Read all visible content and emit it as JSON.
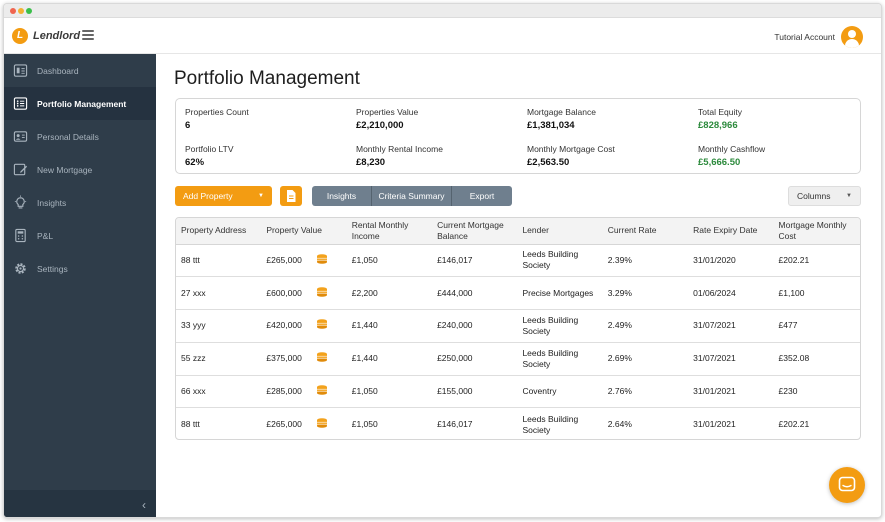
{
  "app": {
    "logo_letter": "L",
    "logo_text": "Lendlord",
    "account_name": "Tutorial Account",
    "accent_color": "#f39c12"
  },
  "sidebar": {
    "items": [
      {
        "label": "Dashboard",
        "icon": "dashboard-icon",
        "active": false
      },
      {
        "label": "Portfolio Management",
        "icon": "portfolio-grid-icon",
        "active": true
      },
      {
        "label": "Personal Details",
        "icon": "id-card-icon",
        "active": false
      },
      {
        "label": "New Mortgage",
        "icon": "edit-document-icon",
        "active": false
      },
      {
        "label": "Insights",
        "icon": "lightbulb-icon",
        "active": false
      },
      {
        "label": "P&L",
        "icon": "calculator-icon",
        "active": false
      },
      {
        "label": "Settings",
        "icon": "gear-icon",
        "active": false
      }
    ],
    "collapse_glyph": "‹"
  },
  "page": {
    "title": "Portfolio Management"
  },
  "summary": {
    "properties_count": {
      "label": "Properties Count",
      "value": "6"
    },
    "properties_value": {
      "label": "Properties Value",
      "value": "£2,210,000"
    },
    "mortgage_balance": {
      "label": "Mortgage Balance",
      "value": "£1,381,034"
    },
    "total_equity": {
      "label": "Total Equity",
      "value": "£828,966"
    },
    "portfolio_ltv": {
      "label": "Portfolio LTV",
      "value": "62%"
    },
    "monthly_rental_income": {
      "label": "Monthly Rental Income",
      "value": "£8,230"
    },
    "monthly_mortgage_cost": {
      "label": "Monthly Mortgage Cost",
      "value": "£2,563.50"
    },
    "monthly_cashflow": {
      "label": "Monthly Cashflow",
      "value": "£5,666.50"
    },
    "positive_color": "#2c8a3c"
  },
  "toolbar": {
    "add_property": "Add Property",
    "insights": "Insights",
    "criteria_summary": "Criteria Summary",
    "export": "Export",
    "columns": "Columns"
  },
  "table": {
    "headers": [
      "Property Address",
      "Property Value",
      "Rental Monthly Income",
      "Current Mortgage Balance",
      "Lender",
      "Current Rate",
      "Rate Expiry Date",
      "Mortgage Monthly Cost"
    ],
    "rows": [
      [
        "88 ttt",
        "£265,000",
        "£1,050",
        "£146,017",
        "Leeds Building Society",
        "2.39%",
        "31/01/2020",
        "£202.21"
      ],
      [
        "27 xxx",
        "£600,000",
        "£2,200",
        "£444,000",
        "Precise Mortgages",
        "3.29%",
        "01/06/2024",
        "£1,100"
      ],
      [
        "33 yyy",
        "£420,000",
        "£1,440",
        "£240,000",
        "Leeds Building Society",
        "2.49%",
        "31/07/2021",
        "£477"
      ],
      [
        "55 zzz",
        "£375,000",
        "£1,440",
        "£250,000",
        "Leeds Building Society",
        "2.69%",
        "31/07/2021",
        "£352.08"
      ],
      [
        "66 xxx",
        "£285,000",
        "£1,050",
        "£155,000",
        "Coventry",
        "2.76%",
        "31/01/2021",
        "£230"
      ],
      [
        "88 ttt",
        "£265,000",
        "£1,050",
        "£146,017",
        "Leeds Building Society",
        "2.64%",
        "31/01/2021",
        "£202.21"
      ]
    ]
  }
}
